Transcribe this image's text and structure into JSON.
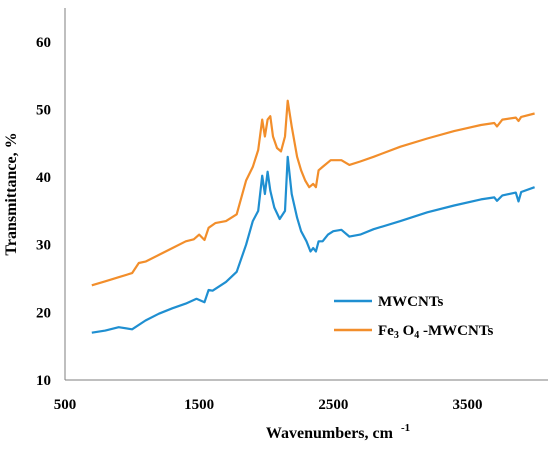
{
  "chart_data": {
    "type": "line",
    "title": "",
    "xlabel": "Wavenumbers, cm",
    "xlabel_sup": "-1",
    "ylabel": "Transmittance, %",
    "xlim": [
      500,
      4100
    ],
    "ylim": [
      10,
      65
    ],
    "xticks": [
      "500",
      "1500",
      "2500",
      "3500"
    ],
    "yticks": [
      "10",
      "20",
      "30",
      "40",
      "50",
      "60"
    ],
    "grid": false,
    "legend_position": "lower-right",
    "series": [
      {
        "name": "MWCNTs",
        "legend_parts": [
          {
            "t": "MWCNTs",
            "sub": false
          }
        ],
        "color": "#1f8fd1",
        "points": [
          [
            700,
            17
          ],
          [
            800,
            17.3
          ],
          [
            900,
            17.8
          ],
          [
            1000,
            17.5
          ],
          [
            1100,
            18.8
          ],
          [
            1200,
            19.8
          ],
          [
            1300,
            20.6
          ],
          [
            1400,
            21.3
          ],
          [
            1480,
            22
          ],
          [
            1540,
            21.5
          ],
          [
            1570,
            23.3
          ],
          [
            1600,
            23.2
          ],
          [
            1700,
            24.5
          ],
          [
            1780,
            26
          ],
          [
            1850,
            30
          ],
          [
            1900,
            33.5
          ],
          [
            1940,
            35
          ],
          [
            1970,
            40.2
          ],
          [
            1990,
            37.5
          ],
          [
            2010,
            40.8
          ],
          [
            2030,
            38
          ],
          [
            2060,
            35.5
          ],
          [
            2100,
            33.8
          ],
          [
            2140,
            35
          ],
          [
            2160,
            43
          ],
          [
            2190,
            37.5
          ],
          [
            2230,
            34
          ],
          [
            2260,
            32
          ],
          [
            2300,
            30.5
          ],
          [
            2330,
            29
          ],
          [
            2350,
            29.5
          ],
          [
            2370,
            29
          ],
          [
            2390,
            30.5
          ],
          [
            2420,
            30.5
          ],
          [
            2460,
            31.5
          ],
          [
            2500,
            32
          ],
          [
            2560,
            32.2
          ],
          [
            2620,
            31.2
          ],
          [
            2700,
            31.5
          ],
          [
            2800,
            32.3
          ],
          [
            3000,
            33.5
          ],
          [
            3200,
            34.8
          ],
          [
            3400,
            35.8
          ],
          [
            3600,
            36.7
          ],
          [
            3700,
            37
          ],
          [
            3720,
            36.5
          ],
          [
            3760,
            37.3
          ],
          [
            3860,
            37.7
          ],
          [
            3880,
            36.4
          ],
          [
            3900,
            37.8
          ],
          [
            4000,
            38.5
          ]
        ]
      },
      {
        "name": "Fe3O4-MWCNTs",
        "legend_parts": [
          {
            "t": "Fe",
            "sub": false
          },
          {
            "t": "3",
            "sub": true
          },
          {
            "t": " O",
            "sub": false
          },
          {
            "t": "4",
            "sub": true
          },
          {
            "t": " -MWCNTs",
            "sub": false
          }
        ],
        "color": "#f28e2b",
        "points": [
          [
            700,
            24
          ],
          [
            800,
            24.6
          ],
          [
            900,
            25.2
          ],
          [
            1000,
            25.8
          ],
          [
            1050,
            27.3
          ],
          [
            1100,
            27.5
          ],
          [
            1200,
            28.5
          ],
          [
            1300,
            29.5
          ],
          [
            1400,
            30.5
          ],
          [
            1460,
            30.8
          ],
          [
            1500,
            31.5
          ],
          [
            1540,
            30.7
          ],
          [
            1570,
            32.5
          ],
          [
            1620,
            33.2
          ],
          [
            1700,
            33.5
          ],
          [
            1780,
            34.5
          ],
          [
            1850,
            39.5
          ],
          [
            1900,
            41.5
          ],
          [
            1940,
            44
          ],
          [
            1970,
            48.5
          ],
          [
            1990,
            46
          ],
          [
            2010,
            48.5
          ],
          [
            2030,
            49
          ],
          [
            2050,
            46
          ],
          [
            2080,
            44.3
          ],
          [
            2110,
            43.8
          ],
          [
            2140,
            46
          ],
          [
            2160,
            51.3
          ],
          [
            2190,
            47.5
          ],
          [
            2230,
            43
          ],
          [
            2260,
            41
          ],
          [
            2290,
            39.5
          ],
          [
            2320,
            38.5
          ],
          [
            2350,
            39
          ],
          [
            2370,
            38.5
          ],
          [
            2390,
            41
          ],
          [
            2420,
            41.5
          ],
          [
            2480,
            42.5
          ],
          [
            2560,
            42.5
          ],
          [
            2620,
            41.8
          ],
          [
            2700,
            42.3
          ],
          [
            2800,
            43
          ],
          [
            3000,
            44.5
          ],
          [
            3200,
            45.7
          ],
          [
            3400,
            46.8
          ],
          [
            3600,
            47.7
          ],
          [
            3700,
            48
          ],
          [
            3720,
            47.5
          ],
          [
            3760,
            48.5
          ],
          [
            3860,
            48.8
          ],
          [
            3880,
            48.3
          ],
          [
            3900,
            48.9
          ],
          [
            4000,
            49.4
          ]
        ]
      }
    ]
  }
}
